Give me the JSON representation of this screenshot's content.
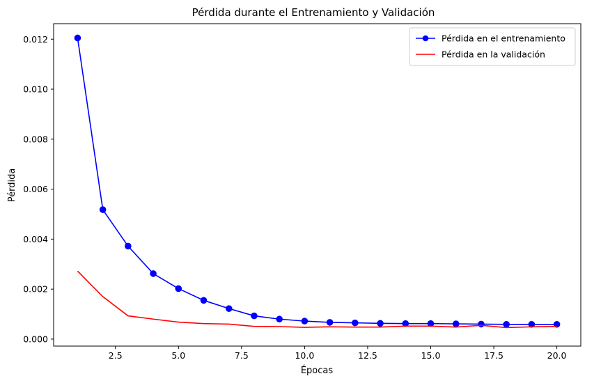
{
  "chart_data": {
    "type": "line",
    "title": "Pérdida durante el Entrenamiento y Validación",
    "xlabel": "Épocas",
    "ylabel": "Pérdida",
    "xlim": [
      0.05,
      20.95
    ],
    "ylim": [
      -0.00028,
      0.01262
    ],
    "xticks": [
      2.5,
      5.0,
      7.5,
      10.0,
      12.5,
      15.0,
      17.5,
      20.0
    ],
    "xtick_labels": [
      "2.5",
      "5.0",
      "7.5",
      "10.0",
      "12.5",
      "15.0",
      "17.5",
      "20.0"
    ],
    "yticks": [
      0.0,
      0.002,
      0.004,
      0.006,
      0.008,
      0.01,
      0.012
    ],
    "ytick_labels": [
      "0.000",
      "0.002",
      "0.004",
      "0.006",
      "0.008",
      "0.010",
      "0.012"
    ],
    "grid": false,
    "legend_position": "top-right",
    "x": [
      1,
      2,
      3,
      4,
      5,
      6,
      7,
      8,
      9,
      10,
      11,
      12,
      13,
      14,
      15,
      16,
      17,
      18,
      19,
      20
    ],
    "series": [
      {
        "name": "Pérdida en el entrenamiento",
        "color": "#0000ff",
        "marker": "circle",
        "values": [
          0.01205,
          0.00518,
          0.00372,
          0.00262,
          0.00202,
          0.00155,
          0.00122,
          0.00093,
          0.0008,
          0.00072,
          0.00067,
          0.00065,
          0.00063,
          0.00062,
          0.00062,
          0.00061,
          0.0006,
          0.00059,
          0.00059,
          0.00059
        ]
      },
      {
        "name": "Pérdida en la validación",
        "color": "#ff0000",
        "marker": "none",
        "values": [
          0.00272,
          0.0017,
          0.00093,
          0.0008,
          0.00068,
          0.00062,
          0.0006,
          0.00051,
          0.0005,
          0.00047,
          0.00049,
          0.00048,
          0.00048,
          0.00052,
          0.00052,
          0.00048,
          0.00055,
          0.00046,
          0.00049,
          0.00051
        ]
      }
    ]
  }
}
